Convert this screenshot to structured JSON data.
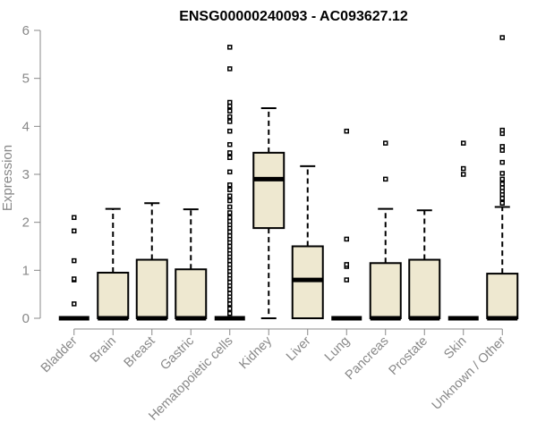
{
  "chart_data": {
    "type": "boxplot",
    "title": "ENSG00000240093 - AC093627.12",
    "xlabel": "",
    "ylabel": "Expression",
    "ylim": [
      0,
      6
    ],
    "yticks": [
      0,
      1,
      2,
      3,
      4,
      5,
      6
    ],
    "grid": false,
    "colors": {
      "box_fill": "#EEE8D0",
      "box_stroke": "#000000",
      "axis": "#888888"
    },
    "categories": [
      "Bladder",
      "Brain",
      "Breast",
      "Gastric",
      "Hematopoietic cells",
      "Kidney",
      "Liver",
      "Lung",
      "Pancreas",
      "Prostate",
      "Skin",
      "Unknown / Other"
    ],
    "boxes": [
      {
        "category": "Bladder",
        "q1": 0,
        "median": 0,
        "q3": 0,
        "whisker_low": 0,
        "whisker_high": 0,
        "outliers": [
          0.3,
          0.8,
          0.82,
          1.2,
          1.82,
          2.1
        ]
      },
      {
        "category": "Brain",
        "q1": 0,
        "median": 0,
        "q3": 0.95,
        "whisker_low": 0,
        "whisker_high": 2.28,
        "outliers": []
      },
      {
        "category": "Breast",
        "q1": 0,
        "median": 0,
        "q3": 1.22,
        "whisker_low": 0,
        "whisker_high": 2.4,
        "outliers": []
      },
      {
        "category": "Gastric",
        "q1": 0,
        "median": 0,
        "q3": 1.02,
        "whisker_low": 0,
        "whisker_high": 2.27,
        "outliers": []
      },
      {
        "category": "Hematopoietic cells",
        "q1": 0,
        "median": 0,
        "q3": 0,
        "whisker_low": 0,
        "whisker_high": 0,
        "outliers": [
          0.1,
          0.2,
          0.3,
          0.38,
          0.45,
          0.52,
          0.6,
          0.68,
          0.75,
          0.83,
          0.9,
          0.98,
          1.05,
          1.12,
          1.2,
          1.28,
          1.35,
          1.42,
          1.5,
          1.58,
          1.65,
          1.72,
          1.8,
          1.88,
          1.95,
          2.02,
          2.1,
          2.2,
          2.32,
          2.45,
          2.55,
          2.68,
          2.78,
          3.05,
          3.35,
          3.45,
          3.62,
          3.9,
          4.1,
          4.2,
          4.32,
          4.42,
          4.5,
          5.2,
          5.65
        ]
      },
      {
        "category": "Kidney",
        "q1": 1.88,
        "median": 2.9,
        "q3": 3.45,
        "whisker_low": 0,
        "whisker_high": 4.38,
        "outliers": []
      },
      {
        "category": "Liver",
        "q1": 0,
        "median": 0.8,
        "q3": 1.5,
        "whisker_low": 0,
        "whisker_high": 3.17,
        "outliers": []
      },
      {
        "category": "Lung",
        "q1": 0,
        "median": 0,
        "q3": 0,
        "whisker_low": 0,
        "whisker_high": 0,
        "outliers": [
          0.8,
          1.08,
          1.12,
          1.65,
          3.9
        ]
      },
      {
        "category": "Pancreas",
        "q1": 0,
        "median": 0,
        "q3": 1.15,
        "whisker_low": 0,
        "whisker_high": 2.28,
        "outliers": [
          2.9,
          3.65
        ]
      },
      {
        "category": "Prostate",
        "q1": 0,
        "median": 0,
        "q3": 1.22,
        "whisker_low": 0,
        "whisker_high": 2.25,
        "outliers": []
      },
      {
        "category": "Skin",
        "q1": 0,
        "median": 0,
        "q3": 0,
        "whisker_low": 0,
        "whisker_high": 0,
        "outliers": [
          3.0,
          3.12,
          3.65
        ]
      },
      {
        "category": "Unknown / Other",
        "q1": 0,
        "median": 0,
        "q3": 0.93,
        "whisker_low": 0,
        "whisker_high": 2.32,
        "outliers": [
          2.4,
          2.5,
          2.58,
          2.65,
          2.72,
          2.8,
          2.9,
          3.02,
          3.25,
          3.5,
          3.58,
          3.85,
          3.92,
          5.85
        ]
      }
    ]
  }
}
